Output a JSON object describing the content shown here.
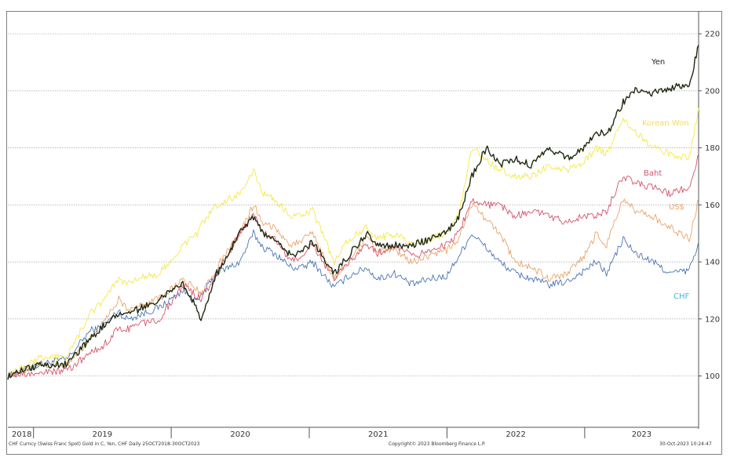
{
  "chart_data": {
    "type": "line",
    "x_range": [
      "2018-10-25",
      "2023-10-30"
    ],
    "ylim": [
      82,
      228
    ],
    "y_ticks": [
      100,
      120,
      140,
      160,
      180,
      200,
      220
    ],
    "x_labels": [
      "2018",
      "2019",
      "2020",
      "2021",
      "2022",
      "2023"
    ],
    "grid": true,
    "y_axis_side": "right",
    "series": [
      {
        "name": "CHF",
        "color": "#4a74b4",
        "label_color": "#3bbbd0",
        "x": [
          "2018-10-25",
          "2019-01-15",
          "2019-04-01",
          "2019-06-01",
          "2019-07-01",
          "2019-08-15",
          "2019-09-01",
          "2019-10-01",
          "2019-12-01",
          "2020-02-01",
          "2020-03-10",
          "2020-03-20",
          "2020-05-01",
          "2020-07-01",
          "2020-08-06",
          "2020-09-01",
          "2020-10-01",
          "2020-11-15",
          "2020-12-15",
          "2021-01-10",
          "2021-03-08",
          "2021-04-15",
          "2021-06-01",
          "2021-07-01",
          "2021-08-15",
          "2021-09-30",
          "2021-11-15",
          "2021-12-31",
          "2022-02-01",
          "2022-03-08",
          "2022-04-15",
          "2022-05-20",
          "2022-07-01",
          "2022-08-15",
          "2022-09-30",
          "2022-11-15",
          "2022-12-31",
          "2023-02-01",
          "2023-02-28",
          "2023-04-13",
          "2023-05-15",
          "2023-07-01",
          "2023-08-15",
          "2023-10-05",
          "2023-10-30"
        ],
        "y": [
          100,
          104,
          106,
          116,
          117,
          123,
          120,
          121,
          124,
          130,
          126,
          128,
          136,
          140,
          150,
          145,
          143,
          138,
          138,
          140,
          131,
          135,
          138,
          134,
          136,
          132,
          134,
          135,
          142,
          150,
          145,
          140,
          136,
          134,
          132,
          133,
          137,
          140,
          136,
          148,
          143,
          140,
          136,
          137,
          147
        ]
      },
      {
        "name": "US$",
        "color": "#e8a46a",
        "label_color": "#e8a46a",
        "x": [
          "2018-10-25",
          "2019-01-15",
          "2019-04-01",
          "2019-06-01",
          "2019-07-01",
          "2019-08-15",
          "2019-09-01",
          "2019-10-01",
          "2019-12-01",
          "2020-02-01",
          "2020-03-10",
          "2020-03-20",
          "2020-05-01",
          "2020-07-01",
          "2020-08-06",
          "2020-09-01",
          "2020-10-01",
          "2020-11-15",
          "2020-12-15",
          "2021-01-10",
          "2021-03-08",
          "2021-04-15",
          "2021-06-01",
          "2021-07-01",
          "2021-08-15",
          "2021-09-30",
          "2021-11-15",
          "2021-12-31",
          "2022-02-01",
          "2022-03-08",
          "2022-04-15",
          "2022-05-20",
          "2022-07-01",
          "2022-08-15",
          "2022-09-30",
          "2022-11-15",
          "2022-12-31",
          "2023-02-01",
          "2023-02-28",
          "2023-04-13",
          "2023-05-15",
          "2023-07-01",
          "2023-08-15",
          "2023-10-05",
          "2023-10-30"
        ],
        "y": [
          100,
          104,
          104,
          113,
          118,
          127,
          124,
          124,
          127,
          134,
          130,
          128,
          138,
          150,
          160,
          154,
          152,
          146,
          148,
          150,
          134,
          140,
          148,
          144,
          144,
          140,
          142,
          144,
          148,
          160,
          155,
          150,
          140,
          138,
          134,
          136,
          142,
          150,
          146,
          162,
          158,
          156,
          152,
          148,
          162
        ]
      },
      {
        "name": "Baht",
        "color": "#d4546a",
        "label_color": "#d4546a",
        "x": [
          "2018-10-25",
          "2019-01-15",
          "2019-04-01",
          "2019-06-01",
          "2019-07-01",
          "2019-08-15",
          "2019-09-01",
          "2019-10-01",
          "2019-12-01",
          "2020-02-01",
          "2020-03-10",
          "2020-03-20",
          "2020-05-01",
          "2020-07-01",
          "2020-08-06",
          "2020-09-01",
          "2020-10-01",
          "2020-11-15",
          "2020-12-15",
          "2021-01-10",
          "2021-03-08",
          "2021-04-15",
          "2021-06-01",
          "2021-07-01",
          "2021-08-15",
          "2021-09-30",
          "2021-11-15",
          "2021-12-31",
          "2022-02-01",
          "2022-03-08",
          "2022-04-15",
          "2022-05-20",
          "2022-07-01",
          "2022-08-15",
          "2022-09-30",
          "2022-11-15",
          "2022-12-31",
          "2023-02-01",
          "2023-02-28",
          "2023-04-13",
          "2023-05-15",
          "2023-07-01",
          "2023-08-15",
          "2023-10-05",
          "2023-10-30"
        ],
        "y": [
          100,
          101,
          102,
          108,
          110,
          117,
          116,
          118,
          120,
          132,
          128,
          127,
          136,
          150,
          157,
          150,
          148,
          140,
          143,
          146,
          134,
          140,
          146,
          143,
          146,
          142,
          144,
          146,
          150,
          162,
          160,
          160,
          156,
          158,
          156,
          154,
          156,
          156,
          158,
          170,
          168,
          166,
          164,
          166,
          178
        ]
      },
      {
        "name": "Korean Won",
        "color": "#f5e84a",
        "label_color": "#f0dc6a",
        "x": [
          "2018-10-25",
          "2019-01-15",
          "2019-04-01",
          "2019-06-01",
          "2019-07-01",
          "2019-08-15",
          "2019-09-01",
          "2019-10-01",
          "2019-12-01",
          "2020-02-01",
          "2020-03-10",
          "2020-03-20",
          "2020-05-01",
          "2020-07-01",
          "2020-08-06",
          "2020-09-01",
          "2020-10-01",
          "2020-11-15",
          "2020-12-15",
          "2021-01-10",
          "2021-03-08",
          "2021-04-15",
          "2021-06-01",
          "2021-07-01",
          "2021-08-15",
          "2021-09-30",
          "2021-11-15",
          "2021-12-31",
          "2022-02-01",
          "2022-03-08",
          "2022-04-15",
          "2022-05-20",
          "2022-07-01",
          "2022-08-15",
          "2022-09-30",
          "2022-11-15",
          "2022-12-31",
          "2023-02-01",
          "2023-02-28",
          "2023-04-13",
          "2023-05-15",
          "2023-07-01",
          "2023-08-15",
          "2023-10-05",
          "2023-10-30"
        ],
        "y": [
          100,
          106,
          107,
          122,
          126,
          134,
          132,
          134,
          136,
          146,
          150,
          153,
          160,
          164,
          172,
          164,
          162,
          156,
          156,
          158,
          140,
          148,
          152,
          148,
          150,
          146,
          148,
          150,
          156,
          180,
          176,
          172,
          170,
          170,
          174,
          172,
          175,
          180,
          178,
          190,
          186,
          180,
          178,
          176,
          194
        ]
      },
      {
        "name": "Yen",
        "color": "#1e2a10",
        "label_color": "#222222",
        "x": [
          "2018-10-25",
          "2019-01-15",
          "2019-04-01",
          "2019-06-01",
          "2019-07-01",
          "2019-08-15",
          "2019-09-01",
          "2019-10-01",
          "2019-12-01",
          "2020-02-01",
          "2020-03-10",
          "2020-03-20",
          "2020-05-01",
          "2020-07-01",
          "2020-08-06",
          "2020-09-01",
          "2020-10-01",
          "2020-11-15",
          "2020-12-15",
          "2021-01-10",
          "2021-03-08",
          "2021-04-15",
          "2021-06-01",
          "2021-07-01",
          "2021-08-15",
          "2021-09-30",
          "2021-11-15",
          "2021-12-31",
          "2022-02-01",
          "2022-03-08",
          "2022-04-15",
          "2022-05-20",
          "2022-07-01",
          "2022-08-15",
          "2022-09-30",
          "2022-11-15",
          "2022-12-31",
          "2023-02-01",
          "2023-02-28",
          "2023-04-13",
          "2023-05-15",
          "2023-07-01",
          "2023-08-15",
          "2023-10-05",
          "2023-10-30"
        ],
        "y": [
          100,
          104,
          104,
          113,
          117,
          122,
          122,
          123,
          127,
          132,
          124,
          120,
          136,
          150,
          156,
          150,
          148,
          142,
          144,
          147,
          136,
          142,
          150,
          146,
          146,
          146,
          148,
          150,
          156,
          170,
          180,
          174,
          176,
          174,
          180,
          176,
          180,
          186,
          184,
          196,
          200,
          199,
          201,
          202,
          216
        ]
      }
    ],
    "footer_left": "CHF Curncy (Swiss Franc Spot) Gold in C, Yen, CHF  Daily 25OCT2018-30OCT2023",
    "footer_center": "Copyright© 2023 Bloomberg Finance L.P.",
    "footer_right": "30-Oct-2023 10:24:47"
  }
}
